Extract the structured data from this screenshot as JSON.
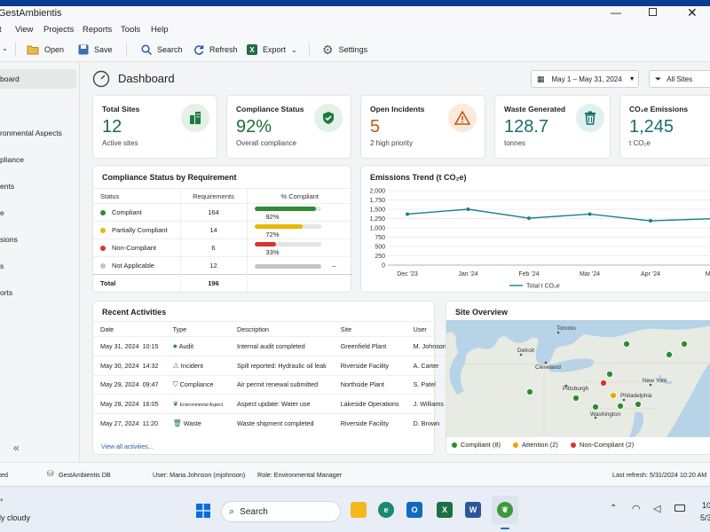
{
  "app": {
    "title": "GestAmbientis"
  },
  "menu": [
    "t",
    "View",
    "Projects",
    "Reports",
    "Tools",
    "Help"
  ],
  "toolbar": {
    "open": "Open",
    "save": "Save",
    "search": "Search",
    "refresh": "Refresh",
    "export": "Export",
    "settings": "Settings"
  },
  "sidebar": {
    "items": [
      "board",
      "ronmental Aspects",
      "pliance",
      "ents",
      "e",
      "sions",
      "s",
      "orts"
    ]
  },
  "header": {
    "title": "Dashboard",
    "date_range": "May 1 – May 31, 2024",
    "site_filter": "All Sites"
  },
  "kpis": [
    {
      "title": "Total Sites",
      "value": "12",
      "subtitle": "Active sites",
      "icon": "building-icon",
      "color": "#1e6b3a",
      "icon_bg": "#e3f1e6"
    },
    {
      "title": "Compliance Status",
      "value": "92%",
      "subtitle": "Overall compliance",
      "icon": "shield-check-icon",
      "color": "#1e6b3a",
      "icon_bg": "#e3f1e6"
    },
    {
      "title": "Open Incidents",
      "value": "5",
      "subtitle": "2 high priority",
      "icon": "warning-icon",
      "color": "#c25a12",
      "icon_bg": "#fbe9dc"
    },
    {
      "title": "Waste Generated",
      "value": "128.7",
      "subtitle": "tonnes",
      "icon": "trash-icon",
      "color": "#1a6f6b",
      "icon_bg": "#e0f0ef"
    },
    {
      "title": "CO₂e Emissions",
      "value": "1,245",
      "subtitle": "t CO₂e",
      "icon": "cloud-icon",
      "color": "#1a6f6b",
      "icon_bg": "#e0f0ef"
    }
  ],
  "compliance": {
    "title": "Compliance Status by Requirement",
    "headers": [
      "Status",
      "Requirements",
      "% Compliant"
    ],
    "rows": [
      {
        "status": "Compliant",
        "count": "164",
        "pct_label": "92%",
        "pct": 92,
        "color": "#2e8b2e"
      },
      {
        "status": "Partially Compliant",
        "count": "14",
        "pct_label": "72%",
        "pct": 72,
        "color": "#e6b800"
      },
      {
        "status": "Non-Compliant",
        "count": "6",
        "pct_label": "33%",
        "pct": 33,
        "color": "#d9342b"
      },
      {
        "status": "Not Applicable",
        "count": "12",
        "pct_label": "–",
        "pct": 100,
        "color": "#c4c4c4"
      }
    ],
    "total_label": "Total",
    "total_value": "196"
  },
  "chart_data": {
    "type": "line",
    "title": "Emissions Trend (t CO₂e)",
    "categories": [
      "Dec '23",
      "Jan '24",
      "Feb '24",
      "Mar '24",
      "Apr '24",
      "May"
    ],
    "series": [
      {
        "name": "Total t CO₂e",
        "values": [
          1370,
          1500,
          1260,
          1370,
          1190,
          1245
        ],
        "color": "#1a7f86"
      }
    ],
    "yticks": [
      "2,000",
      "1,750",
      "1,500",
      "1,250",
      "1,000",
      "750",
      "500",
      "250",
      "0"
    ],
    "ylim": [
      0,
      2000
    ],
    "grid": true,
    "legend": "bottom"
  },
  "activities": {
    "title": "Recent Activities",
    "headers": [
      "Date",
      "Type",
      "Description",
      "Site",
      "User"
    ],
    "rows": [
      {
        "date": "May 31, 2024",
        "time": "10:15",
        "type": "Audit",
        "icon": "check-circle-icon",
        "desc": "Internal audit completed",
        "site": "Greenfield Plant",
        "user": "M. Johnson"
      },
      {
        "date": "May 30, 2024",
        "time": "14:32",
        "type": "Incident",
        "icon": "warning-icon",
        "desc": "Spill reported: Hydraulic oil leak",
        "site": "Riverside Facility",
        "user": "A. Carter"
      },
      {
        "date": "May 29, 2024",
        "time": "09:47",
        "type": "Compliance",
        "icon": "shield-icon",
        "desc": "Air permit renewal submitted",
        "site": "Northside Plant",
        "user": "S. Patel"
      },
      {
        "date": "May 28, 2024",
        "time": "16:05",
        "type": "Environmental Aspect",
        "icon": "leaf-icon",
        "desc": "Aspect update: Water use",
        "site": "Lakeside Operations",
        "user": "J. Williams"
      },
      {
        "date": "May 27, 2024",
        "time": "11:20",
        "type": "Waste",
        "icon": "trash-icon",
        "desc": "Waste shipment completed",
        "site": "Riverside Facility",
        "user": "D. Brown"
      }
    ],
    "view_all": "View all activities..."
  },
  "map": {
    "title": "Site Overview",
    "cities": [
      "Toronto",
      "Detroit",
      "Cleveland",
      "Pittsburgh",
      "Philadelphia",
      "New York",
      "Washington"
    ],
    "legend": [
      {
        "label": "Compliant",
        "count": "(8)",
        "color": "#2e8b2e"
      },
      {
        "label": "Attention",
        "count": "(2)",
        "color": "#e6a800"
      },
      {
        "label": "Non-Compliant",
        "count": "(2)",
        "color": "#d9342b"
      }
    ]
  },
  "status": {
    "left": "ted",
    "db": "GestAmbientis DB",
    "user": "User:  Maria Johnson  (mjohnson)",
    "role": "Role:  Environmental Manager",
    "refresh": "Last refresh:  5/31/2024  10:20 AM"
  },
  "taskbar": {
    "weather": "ly cloudy",
    "search": "Search",
    "time": "10",
    "date": "5/3"
  }
}
